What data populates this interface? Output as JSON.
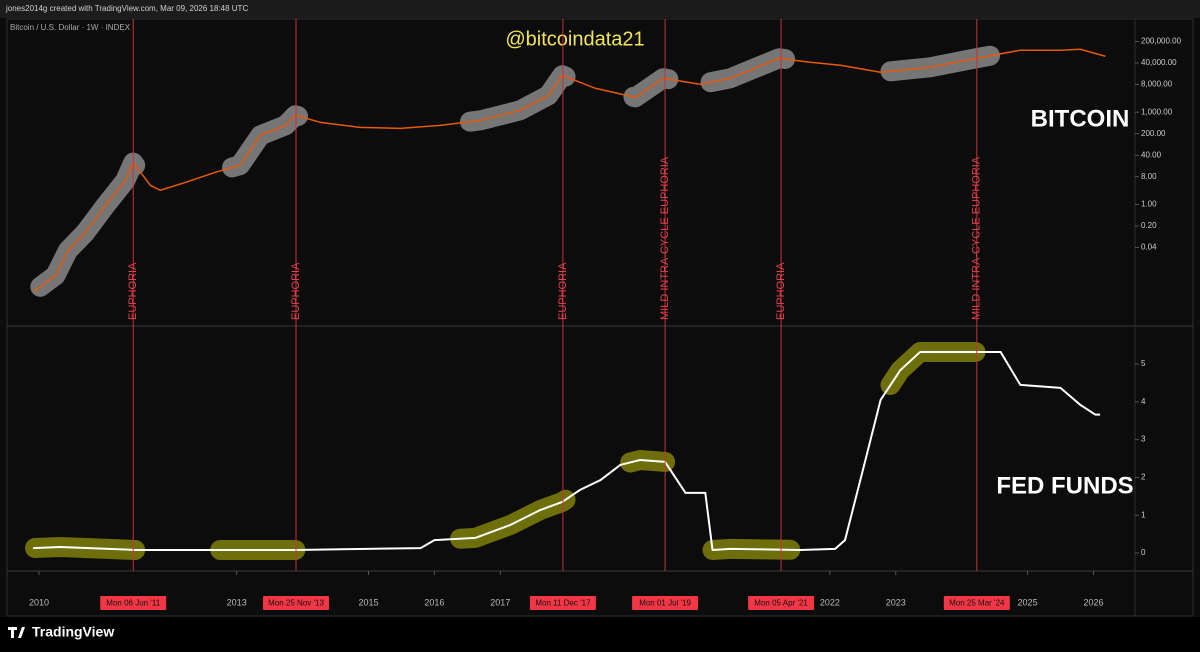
{
  "header": "jones2014g created with TradingView.com, Mar 09, 2026 18:48 UTC",
  "footer": "TradingView",
  "chart_data": [
    {
      "type": "line",
      "title": "Bitcoin / U.S. Dollar · 1W · INDEX",
      "watermark": "@bitcoindata21",
      "label": "BITCOIN",
      "y_scale": "log",
      "color": "#e8590c",
      "highlight_color": "#8a8a8a",
      "x": [
        2009.91,
        2010.25,
        2010.44,
        2010.7,
        2011.01,
        2011.31,
        2011.43,
        2011.69,
        2011.84,
        2012.22,
        2012.67,
        2013.05,
        2013.36,
        2013.74,
        2013.89,
        2014.27,
        2014.87,
        2015.48,
        2016.09,
        2016.7,
        2017.3,
        2017.73,
        2017.94,
        2018.44,
        2019.05,
        2019.47,
        2020.03,
        2020.49,
        2021.23,
        2021.7,
        2022.16,
        2022.77,
        2023.52,
        2024.22,
        2024.89,
        2025.5,
        2025.8,
        2026.18
      ],
      "values": [
        0.0014,
        0.0049,
        0.032,
        0.12,
        0.93,
        6.0,
        23,
        4.2,
        2.9,
        5.2,
        11,
        19,
        177,
        374,
        793,
        469,
        322,
        299,
        374,
        545,
        1153,
        3550,
        15900,
        6010,
        3055,
        12710,
        8110,
        12710,
        57000,
        42200,
        33700,
        19950,
        29000,
        57000,
        104000,
        104000,
        112000,
        66200
      ],
      "xlim": [
        2009.53,
        2026.63
      ],
      "ylim": [
        0.00012,
        1000000
      ],
      "yticks": [
        {
          "value": 200000,
          "label": "200,000.00"
        },
        {
          "value": 40000,
          "label": "40,000.00"
        },
        {
          "value": 8000,
          "label": "8,000.00"
        },
        {
          "value": 1000,
          "label": "1,000.00"
        },
        {
          "value": 200,
          "label": "200.00"
        },
        {
          "value": 40,
          "label": "40.00"
        },
        {
          "value": 8,
          "label": "8.00"
        },
        {
          "value": 1,
          "label": "1.00"
        },
        {
          "value": 0.2,
          "label": "0.20"
        },
        {
          "value": 0.04,
          "label": "0.04"
        }
      ],
      "highlights": [
        [
          2010.02,
          2011.46
        ],
        [
          2012.93,
          2013.93
        ],
        [
          2016.54,
          2017.99
        ],
        [
          2019.02,
          2019.55
        ],
        [
          2020.19,
          2021.32
        ],
        [
          2022.92,
          2024.43
        ]
      ],
      "events": [
        {
          "x": 2011.43,
          "label": "EUPHORIA",
          "date_label": "Mon 06 Jun '11"
        },
        {
          "x": 2013.9,
          "label": "EUPHORIA",
          "date_label": "Mon 25 Nov '13"
        },
        {
          "x": 2017.95,
          "label": "EUPHORIA",
          "date_label": "Mon 11 Dec '17"
        },
        {
          "x": 2019.5,
          "label": "MILD INTRA-CYCLE EUPHORIA",
          "date_label": "Mon 01 Jul '19"
        },
        {
          "x": 2021.26,
          "label": "EUPHORIA",
          "date_label": "Mon 05 Apr '21"
        },
        {
          "x": 2024.23,
          "label": "MILD INTRA-CYCLE EUPHORIA",
          "date_label": "Mon 25 Mar '24"
        }
      ]
    },
    {
      "type": "line",
      "label": "FED FUNDS",
      "y_scale": "linear",
      "color": "#ffffff",
      "highlight_color": "#80800a",
      "x": [
        2009.91,
        2010.32,
        2011.46,
        2013.89,
        2015.79,
        2016.0,
        2016.62,
        2017.15,
        2017.61,
        2017.94,
        2018.21,
        2018.52,
        2018.82,
        2019.12,
        2019.5,
        2019.81,
        2020.11,
        2020.22,
        2020.49,
        2021.55,
        2022.08,
        2022.23,
        2022.54,
        2022.77,
        2023.07,
        2023.37,
        2024.59,
        2024.89,
        2025.5,
        2025.8,
        2026.03,
        2026.1
      ],
      "values": [
        0.13,
        0.16,
        0.08,
        0.08,
        0.13,
        0.34,
        0.4,
        0.74,
        1.14,
        1.35,
        1.67,
        1.93,
        2.33,
        2.46,
        2.41,
        1.59,
        1.59,
        0.08,
        0.11,
        0.08,
        0.11,
        0.34,
        2.46,
        4.05,
        4.84,
        5.32,
        5.32,
        4.45,
        4.37,
        3.92,
        3.66,
        3.66
      ],
      "xlim": [
        2009.53,
        2026.63
      ],
      "ylim": [
        -0.45,
        5.98
      ],
      "yticks": [
        0,
        1,
        2,
        3,
        4,
        5
      ],
      "xticks": [
        2010,
        2013,
        2015,
        2016,
        2017,
        2022,
        2023,
        2025,
        2026
      ],
      "highlights": [
        [
          2009.94,
          2011.46
        ],
        [
          2012.75,
          2013.89
        ],
        [
          2016.39,
          2017.99
        ],
        [
          2018.97,
          2019.5
        ],
        [
          2020.22,
          2021.4
        ],
        [
          2022.92,
          2024.21
        ]
      ]
    }
  ]
}
